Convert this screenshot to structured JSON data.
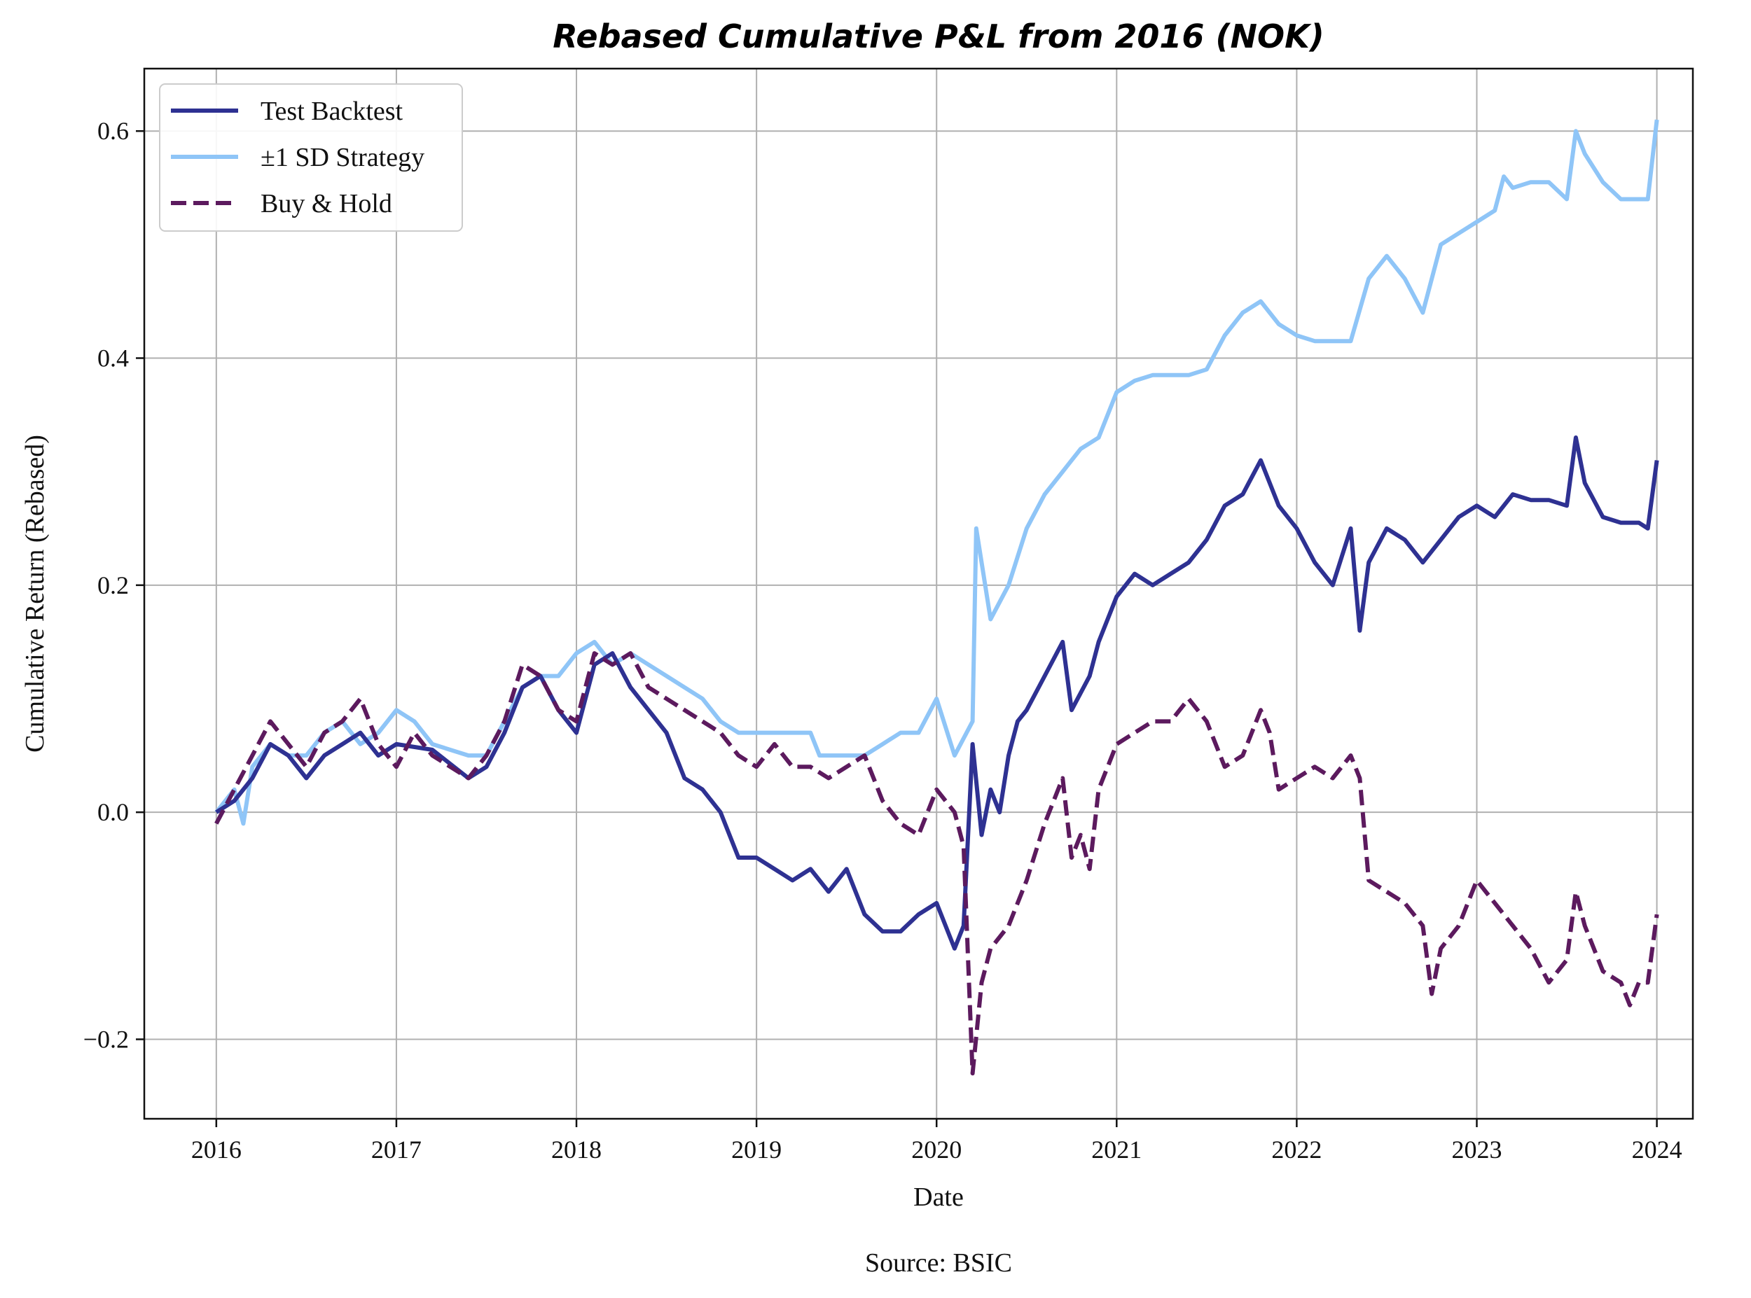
{
  "chart_data": {
    "type": "line",
    "title": "Rebased Cumulative P&L from 2016 (NOK)",
    "xlabel": "Date",
    "ylabel": "Cumulative Return (Rebased)",
    "source": "Source: BSIC",
    "xlim": [
      2015.6,
      2024.2
    ],
    "ylim": [
      -0.27,
      0.655
    ],
    "x_ticks": [
      2016,
      2017,
      2018,
      2019,
      2020,
      2021,
      2022,
      2023,
      2024
    ],
    "x_tick_labels": [
      "2016",
      "2017",
      "2018",
      "2019",
      "2020",
      "2021",
      "2022",
      "2023",
      "2024"
    ],
    "y_ticks": [
      -0.2,
      0.0,
      0.2,
      0.4,
      0.6
    ],
    "y_tick_labels": [
      "−0.2",
      "0.0",
      "0.2",
      "0.4",
      "0.6"
    ],
    "grid": true,
    "legend_position": "top-left",
    "series": [
      {
        "name": "Test Backtest",
        "color": "#2e3192",
        "dash": "solid",
        "points": [
          [
            2016.0,
            0.0
          ],
          [
            2016.1,
            0.01
          ],
          [
            2016.2,
            0.03
          ],
          [
            2016.3,
            0.06
          ],
          [
            2016.4,
            0.05
          ],
          [
            2016.5,
            0.03
          ],
          [
            2016.6,
            0.05
          ],
          [
            2016.7,
            0.06
          ],
          [
            2016.8,
            0.07
          ],
          [
            2016.9,
            0.05
          ],
          [
            2017.0,
            0.06
          ],
          [
            2017.2,
            0.055
          ],
          [
            2017.4,
            0.03
          ],
          [
            2017.5,
            0.04
          ],
          [
            2017.6,
            0.07
          ],
          [
            2017.7,
            0.11
          ],
          [
            2017.8,
            0.12
          ],
          [
            2017.9,
            0.09
          ],
          [
            2018.0,
            0.07
          ],
          [
            2018.1,
            0.13
          ],
          [
            2018.2,
            0.14
          ],
          [
            2018.3,
            0.11
          ],
          [
            2018.4,
            0.09
          ],
          [
            2018.5,
            0.07
          ],
          [
            2018.6,
            0.03
          ],
          [
            2018.7,
            0.02
          ],
          [
            2018.8,
            0.0
          ],
          [
            2018.9,
            -0.04
          ],
          [
            2019.0,
            -0.04
          ],
          [
            2019.1,
            -0.05
          ],
          [
            2019.2,
            -0.06
          ],
          [
            2019.3,
            -0.05
          ],
          [
            2019.4,
            -0.07
          ],
          [
            2019.5,
            -0.05
          ],
          [
            2019.6,
            -0.09
          ],
          [
            2019.7,
            -0.105
          ],
          [
            2019.8,
            -0.105
          ],
          [
            2019.9,
            -0.09
          ],
          [
            2020.0,
            -0.08
          ],
          [
            2020.1,
            -0.12
          ],
          [
            2020.15,
            -0.1
          ],
          [
            2020.2,
            0.06
          ],
          [
            2020.25,
            -0.02
          ],
          [
            2020.3,
            0.02
          ],
          [
            2020.35,
            0.0
          ],
          [
            2020.4,
            0.05
          ],
          [
            2020.45,
            0.08
          ],
          [
            2020.5,
            0.09
          ],
          [
            2020.6,
            0.12
          ],
          [
            2020.7,
            0.15
          ],
          [
            2020.75,
            0.09
          ],
          [
            2020.85,
            0.12
          ],
          [
            2020.9,
            0.15
          ],
          [
            2021.0,
            0.19
          ],
          [
            2021.1,
            0.21
          ],
          [
            2021.2,
            0.2
          ],
          [
            2021.3,
            0.21
          ],
          [
            2021.4,
            0.22
          ],
          [
            2021.5,
            0.24
          ],
          [
            2021.6,
            0.27
          ],
          [
            2021.7,
            0.28
          ],
          [
            2021.8,
            0.31
          ],
          [
            2021.9,
            0.27
          ],
          [
            2022.0,
            0.25
          ],
          [
            2022.1,
            0.22
          ],
          [
            2022.2,
            0.2
          ],
          [
            2022.3,
            0.25
          ],
          [
            2022.35,
            0.16
          ],
          [
            2022.4,
            0.22
          ],
          [
            2022.5,
            0.25
          ],
          [
            2022.6,
            0.24
          ],
          [
            2022.7,
            0.22
          ],
          [
            2022.8,
            0.24
          ],
          [
            2022.9,
            0.26
          ],
          [
            2023.0,
            0.27
          ],
          [
            2023.1,
            0.26
          ],
          [
            2023.2,
            0.28
          ],
          [
            2023.3,
            0.275
          ],
          [
            2023.4,
            0.275
          ],
          [
            2023.5,
            0.27
          ],
          [
            2023.55,
            0.33
          ],
          [
            2023.6,
            0.29
          ],
          [
            2023.7,
            0.26
          ],
          [
            2023.8,
            0.255
          ],
          [
            2023.9,
            0.255
          ],
          [
            2023.95,
            0.25
          ],
          [
            2024.0,
            0.31
          ]
        ]
      },
      {
        "name": "±1 SD Strategy",
        "color": "#8fc5f7",
        "dash": "solid",
        "points": [
          [
            2016.0,
            0.0
          ],
          [
            2016.1,
            0.02
          ],
          [
            2016.15,
            -0.01
          ],
          [
            2016.2,
            0.04
          ],
          [
            2016.3,
            0.06
          ],
          [
            2016.4,
            0.05
          ],
          [
            2016.5,
            0.05
          ],
          [
            2016.6,
            0.07
          ],
          [
            2016.7,
            0.08
          ],
          [
            2016.8,
            0.06
          ],
          [
            2016.9,
            0.07
          ],
          [
            2017.0,
            0.09
          ],
          [
            2017.1,
            0.08
          ],
          [
            2017.2,
            0.06
          ],
          [
            2017.4,
            0.05
          ],
          [
            2017.5,
            0.05
          ],
          [
            2017.6,
            0.08
          ],
          [
            2017.7,
            0.11
          ],
          [
            2017.8,
            0.12
          ],
          [
            2017.9,
            0.12
          ],
          [
            2018.0,
            0.14
          ],
          [
            2018.1,
            0.15
          ],
          [
            2018.2,
            0.13
          ],
          [
            2018.3,
            0.14
          ],
          [
            2018.4,
            0.13
          ],
          [
            2018.5,
            0.12
          ],
          [
            2018.6,
            0.11
          ],
          [
            2018.7,
            0.1
          ],
          [
            2018.8,
            0.08
          ],
          [
            2018.9,
            0.07
          ],
          [
            2019.0,
            0.07
          ],
          [
            2019.1,
            0.07
          ],
          [
            2019.3,
            0.07
          ],
          [
            2019.35,
            0.05
          ],
          [
            2019.5,
            0.05
          ],
          [
            2019.6,
            0.05
          ],
          [
            2019.7,
            0.06
          ],
          [
            2019.8,
            0.07
          ],
          [
            2019.9,
            0.07
          ],
          [
            2020.0,
            0.1
          ],
          [
            2020.1,
            0.05
          ],
          [
            2020.2,
            0.08
          ],
          [
            2020.22,
            0.25
          ],
          [
            2020.3,
            0.17
          ],
          [
            2020.4,
            0.2
          ],
          [
            2020.5,
            0.25
          ],
          [
            2020.6,
            0.28
          ],
          [
            2020.7,
            0.3
          ],
          [
            2020.8,
            0.32
          ],
          [
            2020.9,
            0.33
          ],
          [
            2021.0,
            0.37
          ],
          [
            2021.1,
            0.38
          ],
          [
            2021.2,
            0.385
          ],
          [
            2021.3,
            0.385
          ],
          [
            2021.4,
            0.385
          ],
          [
            2021.5,
            0.39
          ],
          [
            2021.6,
            0.42
          ],
          [
            2021.7,
            0.44
          ],
          [
            2021.8,
            0.45
          ],
          [
            2021.9,
            0.43
          ],
          [
            2022.0,
            0.42
          ],
          [
            2022.1,
            0.415
          ],
          [
            2022.3,
            0.415
          ],
          [
            2022.4,
            0.47
          ],
          [
            2022.5,
            0.49
          ],
          [
            2022.6,
            0.47
          ],
          [
            2022.7,
            0.44
          ],
          [
            2022.8,
            0.5
          ],
          [
            2022.9,
            0.51
          ],
          [
            2023.0,
            0.52
          ],
          [
            2023.1,
            0.53
          ],
          [
            2023.15,
            0.56
          ],
          [
            2023.2,
            0.55
          ],
          [
            2023.3,
            0.555
          ],
          [
            2023.4,
            0.555
          ],
          [
            2023.5,
            0.54
          ],
          [
            2023.55,
            0.6
          ],
          [
            2023.6,
            0.58
          ],
          [
            2023.7,
            0.555
          ],
          [
            2023.8,
            0.54
          ],
          [
            2023.9,
            0.54
          ],
          [
            2023.95,
            0.54
          ],
          [
            2024.0,
            0.61
          ]
        ]
      },
      {
        "name": "Buy & Hold",
        "color": "#5c1a5e",
        "dash": "dashed",
        "points": [
          [
            2016.0,
            -0.01
          ],
          [
            2016.1,
            0.02
          ],
          [
            2016.2,
            0.05
          ],
          [
            2016.3,
            0.08
          ],
          [
            2016.4,
            0.06
          ],
          [
            2016.5,
            0.04
          ],
          [
            2016.6,
            0.07
          ],
          [
            2016.7,
            0.08
          ],
          [
            2016.8,
            0.1
          ],
          [
            2016.9,
            0.06
          ],
          [
            2017.0,
            0.04
          ],
          [
            2017.1,
            0.07
          ],
          [
            2017.2,
            0.05
          ],
          [
            2017.3,
            0.04
          ],
          [
            2017.4,
            0.03
          ],
          [
            2017.5,
            0.05
          ],
          [
            2017.6,
            0.08
          ],
          [
            2017.7,
            0.13
          ],
          [
            2017.8,
            0.12
          ],
          [
            2017.9,
            0.09
          ],
          [
            2018.0,
            0.08
          ],
          [
            2018.1,
            0.14
          ],
          [
            2018.2,
            0.13
          ],
          [
            2018.3,
            0.14
          ],
          [
            2018.4,
            0.11
          ],
          [
            2018.5,
            0.1
          ],
          [
            2018.6,
            0.09
          ],
          [
            2018.7,
            0.08
          ],
          [
            2018.8,
            0.07
          ],
          [
            2018.9,
            0.05
          ],
          [
            2019.0,
            0.04
          ],
          [
            2019.1,
            0.06
          ],
          [
            2019.2,
            0.04
          ],
          [
            2019.3,
            0.04
          ],
          [
            2019.4,
            0.03
          ],
          [
            2019.5,
            0.04
          ],
          [
            2019.6,
            0.05
          ],
          [
            2019.7,
            0.01
          ],
          [
            2019.8,
            -0.01
          ],
          [
            2019.9,
            -0.02
          ],
          [
            2020.0,
            0.02
          ],
          [
            2020.1,
            0.0
          ],
          [
            2020.15,
            -0.03
          ],
          [
            2020.2,
            -0.23
          ],
          [
            2020.25,
            -0.15
          ],
          [
            2020.3,
            -0.12
          ],
          [
            2020.4,
            -0.1
          ],
          [
            2020.5,
            -0.06
          ],
          [
            2020.6,
            -0.01
          ],
          [
            2020.7,
            0.03
          ],
          [
            2020.75,
            -0.04
          ],
          [
            2020.8,
            -0.02
          ],
          [
            2020.85,
            -0.05
          ],
          [
            2020.9,
            0.02
          ],
          [
            2021.0,
            0.06
          ],
          [
            2021.1,
            0.07
          ],
          [
            2021.2,
            0.08
          ],
          [
            2021.3,
            0.08
          ],
          [
            2021.4,
            0.1
          ],
          [
            2021.5,
            0.08
          ],
          [
            2021.6,
            0.04
          ],
          [
            2021.7,
            0.05
          ],
          [
            2021.8,
            0.09
          ],
          [
            2021.85,
            0.07
          ],
          [
            2021.9,
            0.02
          ],
          [
            2022.0,
            0.03
          ],
          [
            2022.1,
            0.04
          ],
          [
            2022.2,
            0.03
          ],
          [
            2022.3,
            0.05
          ],
          [
            2022.35,
            0.03
          ],
          [
            2022.4,
            -0.06
          ],
          [
            2022.5,
            -0.07
          ],
          [
            2022.6,
            -0.08
          ],
          [
            2022.7,
            -0.1
          ],
          [
            2022.75,
            -0.16
          ],
          [
            2022.8,
            -0.12
          ],
          [
            2022.9,
            -0.1
          ],
          [
            2023.0,
            -0.06
          ],
          [
            2023.1,
            -0.08
          ],
          [
            2023.2,
            -0.1
          ],
          [
            2023.3,
            -0.12
          ],
          [
            2023.4,
            -0.15
          ],
          [
            2023.5,
            -0.13
          ],
          [
            2023.55,
            -0.07
          ],
          [
            2023.6,
            -0.1
          ],
          [
            2023.7,
            -0.14
          ],
          [
            2023.8,
            -0.15
          ],
          [
            2023.85,
            -0.17
          ],
          [
            2023.9,
            -0.15
          ],
          [
            2023.95,
            -0.15
          ],
          [
            2024.0,
            -0.09
          ]
        ]
      }
    ]
  }
}
